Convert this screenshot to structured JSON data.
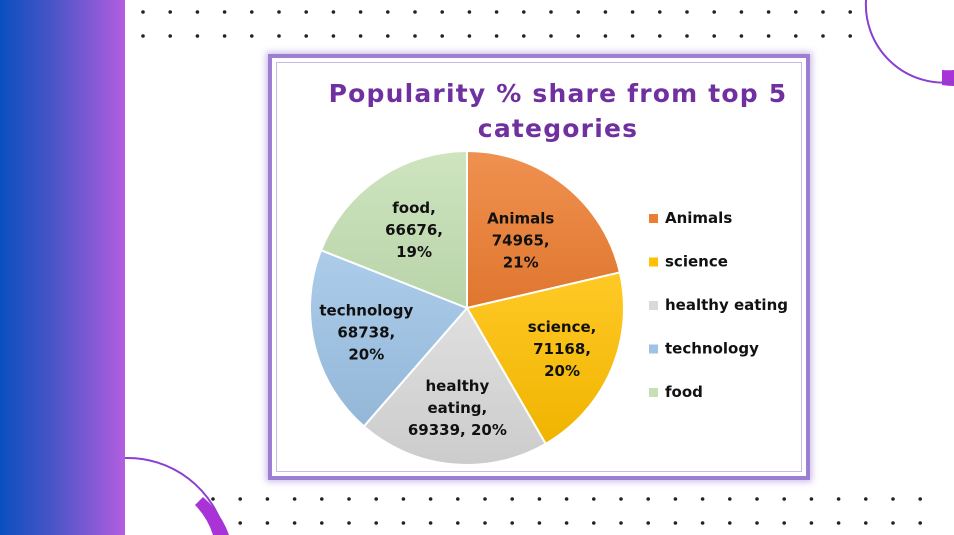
{
  "chart_data": {
    "type": "pie",
    "title_lines": [
      "Popularity % share from top 5",
      "categories"
    ],
    "categories": [
      "Animals",
      "science",
      "healthy eating",
      "technology",
      "food"
    ],
    "values": [
      74965,
      71168,
      69339,
      68738,
      66676
    ],
    "percent_labels": [
      "21%",
      "20%",
      "20%",
      "20%",
      "19%"
    ],
    "data_labels": [
      [
        "Animals",
        "74965,",
        "21%"
      ],
      [
        "science,",
        "71168,",
        "20%"
      ],
      [
        "healthy",
        "eating,",
        "69339, 20%"
      ],
      [
        "technology",
        "68738,",
        "20%"
      ],
      [
        "food,",
        "66676,",
        "19%"
      ]
    ],
    "colors": [
      "#ed7d31",
      "#ffc000",
      "#d9d9d9",
      "#9dc3e6",
      "#c5e0b4"
    ],
    "legend_position": "right"
  }
}
